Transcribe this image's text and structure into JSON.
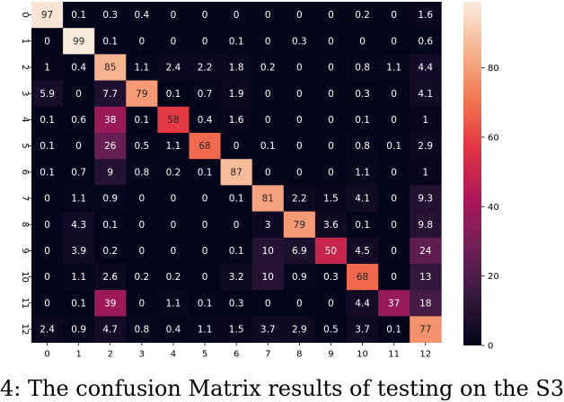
{
  "caption": "4: The confusion Matrix results of testing on the S3",
  "chart_data": {
    "type": "heatmap",
    "x_tick_labels": [
      "0",
      "1",
      "2",
      "3",
      "4",
      "5",
      "6",
      "7",
      "8",
      "9",
      "10",
      "11",
      "12"
    ],
    "y_tick_labels": [
      "0",
      "1",
      "2",
      "3",
      "4",
      "5",
      "6",
      "7",
      "8",
      "9",
      "10",
      "11",
      "12"
    ],
    "matrix": [
      [
        97,
        0.1,
        0.3,
        0.4,
        0,
        0,
        0,
        0,
        0,
        0,
        0.2,
        0,
        1.6
      ],
      [
        0,
        99,
        0.1,
        0,
        0,
        0,
        0.1,
        0,
        0.3,
        0,
        0,
        0,
        0.6
      ],
      [
        1,
        0.4,
        85,
        1.1,
        2.4,
        2.2,
        1.8,
        0.2,
        0,
        0,
        0.8,
        1.1,
        4.4
      ],
      [
        5.9,
        0,
        7.7,
        79,
        0.1,
        0.7,
        1.9,
        0,
        0,
        0,
        0.3,
        0,
        4.1
      ],
      [
        0.1,
        0.6,
        38,
        0.1,
        58,
        0.4,
        1.6,
        0,
        0,
        0,
        0.1,
        0,
        1
      ],
      [
        0.1,
        0,
        26,
        0.5,
        1.1,
        68,
        0,
        0.1,
        0,
        0,
        0.8,
        0.1,
        2.9
      ],
      [
        0.1,
        0.7,
        9,
        0.8,
        0.2,
        0.1,
        87,
        0,
        0,
        0,
        1.1,
        0,
        1
      ],
      [
        0,
        1.1,
        0.9,
        0,
        0,
        0,
        0.1,
        81,
        2.2,
        1.5,
        4.1,
        0,
        9.3
      ],
      [
        0,
        4.3,
        0.1,
        0,
        0,
        0,
        0,
        3,
        79,
        3.6,
        0.1,
        0,
        9.8
      ],
      [
        0,
        3.9,
        0.2,
        0,
        0,
        0,
        0.1,
        10,
        6.9,
        50,
        4.5,
        0,
        24
      ],
      [
        0,
        1.1,
        2.6,
        0.2,
        0.2,
        0,
        3.2,
        10,
        0.9,
        0.3,
        68,
        0,
        13
      ],
      [
        0,
        0.1,
        39,
        0,
        1.1,
        0.1,
        0.3,
        0,
        0,
        0,
        4.4,
        37,
        18
      ],
      [
        2.4,
        0.9,
        4.7,
        0.8,
        0.4,
        1.1,
        1.5,
        3.7,
        2.9,
        0.5,
        3.7,
        0.1,
        77
      ]
    ],
    "colorbar": {
      "range": [
        0,
        99
      ],
      "tick_values": [
        0,
        20,
        40,
        60,
        80
      ],
      "tick_labels": [
        "0",
        "20",
        "40",
        "60",
        "80"
      ],
      "colormap": "rocket",
      "colormap_stops": [
        "#03051a",
        "#35193e",
        "#701f57",
        "#ad1759",
        "#e13342",
        "#f37651",
        "#f6b48f",
        "#faebdd"
      ]
    },
    "grid": false
  }
}
